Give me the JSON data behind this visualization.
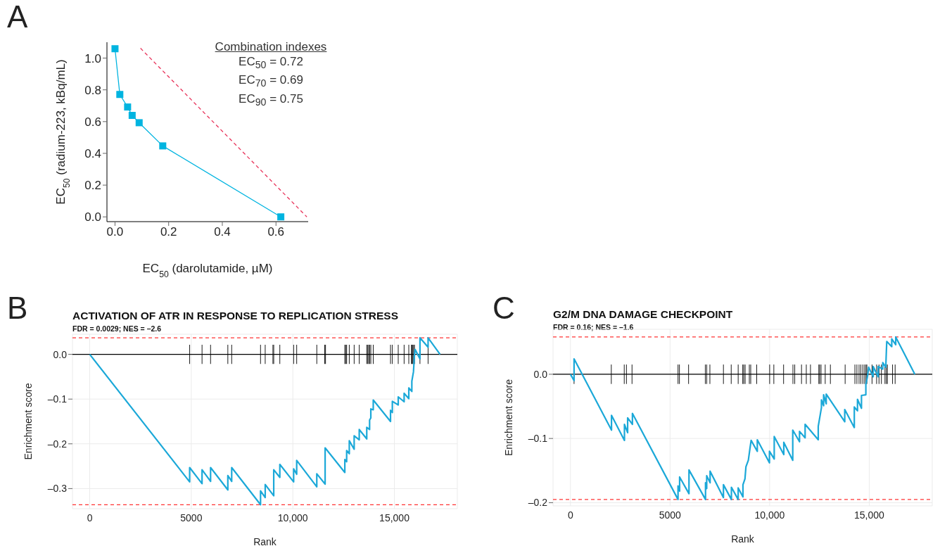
{
  "chart_data": [
    {
      "type": "line",
      "xlabel": "EC$_{50}$ (darolutamide, µM)",
      "ylabel": "EC$_{50}$ (radium-223, kBq/mL)",
      "annotations": [
        "A",
        "Combination indexes",
        "EC$_{50}$ = 0.72",
        "EC$_{70}$ = 0.69",
        "EC$_{90}$ = 0.75"
      ],
      "marker": "square",
      "line_style": "solid",
      "grid": false,
      "xlim": [
        -0.03,
        0.72
      ],
      "ylim": [
        -0.03,
        1.1
      ],
      "xticks": [
        {
          "value": 0,
          "label": "0.0"
        },
        0.2,
        0.4,
        0.6
      ],
      "yticks": [
        {
          "value": 0,
          "label": "0.0"
        },
        0.2,
        0.4,
        0.6,
        0.8,
        {
          "value": 1,
          "label": "1.0"
        }
      ],
      "series": [
        {
          "type": "line",
          "color": "#00b4e0",
          "x": [
            0,
            0.018,
            0.047,
            0.064,
            0.09,
            0.178,
            0.618
          ],
          "values": [
            1.059,
            0.771,
            0.692,
            0.639,
            0.593,
            0.447,
            0
          ]
        },
        {
          "type": "line",
          "color": "#e8335a",
          "line_style": "dashed",
          "marker": "none",
          "x": [
            0.095,
            0.715
          ],
          "values": [
            1.062,
            0
          ]
        }
      ]
    },
    {
      "type": "line",
      "title": "ACTIVATION OF ATR IN RESPONSE TO REPLICATION STRESS",
      "subtitle": "FDR = 0.0029; NES = –2.6",
      "xlabel": "Rank",
      "ylabel": "Enrichment score",
      "annotations": [
        "B"
      ],
      "marker": "none",
      "line_style": "solid",
      "grid": true,
      "xlim": [
        -850,
        18100
      ],
      "ylim": [
        -0.345,
        0.045
      ],
      "xticks": [
        0,
        5000,
        {
          "value": 10000,
          "label": "10,000"
        },
        {
          "value": 15000,
          "label": "15,000"
        }
      ],
      "yticks": [
        {
          "value": -0.3,
          "label": "–0.3"
        },
        {
          "value": -0.2,
          "label": "–0.2"
        },
        {
          "value": -0.1,
          "label": "–0.1"
        },
        {
          "value": 0,
          "label": "0.0"
        }
      ],
      "ref_lines": [
        {
          "axis": "y",
          "value": 0,
          "color": "#000000",
          "line_style": "solid"
        },
        {
          "axis": "y",
          "value": 0.037,
          "color": "#ff3333",
          "line_style": "dashed"
        },
        {
          "axis": "y",
          "value": -0.336,
          "color": "#ff3333",
          "line_style": "dashed"
        },
        {
          "axis": "x",
          "value": 4920,
          "color": "#000000"
        },
        {
          "axis": "x",
          "value": 5530,
          "color": "#000000"
        },
        {
          "axis": "x",
          "value": 5950,
          "color": "#000000"
        },
        {
          "axis": "x",
          "value": 6800,
          "color": "#000000"
        },
        {
          "axis": "x",
          "value": 6990,
          "color": "#000000"
        },
        {
          "axis": "x",
          "value": 8410,
          "color": "#000000"
        },
        {
          "axis": "x",
          "value": 8640,
          "color": "#000000"
        },
        {
          "axis": "x",
          "value": 9020,
          "color": "#000000"
        },
        {
          "axis": "x",
          "value": 9060,
          "color": "#000000"
        },
        {
          "axis": "x",
          "value": 9360,
          "color": "#000000"
        },
        {
          "axis": "x",
          "value": 10040,
          "color": "#000000"
        },
        {
          "axis": "x",
          "value": 10190,
          "color": "#000000"
        },
        {
          "axis": "x",
          "value": 11180,
          "color": "#000000"
        },
        {
          "axis": "x",
          "value": 11570,
          "color": "#000000"
        },
        {
          "axis": "x",
          "value": 11610,
          "color": "#000000"
        },
        {
          "axis": "x",
          "value": 12560,
          "color": "#000000"
        },
        {
          "axis": "x",
          "value": 12600,
          "color": "#000000"
        },
        {
          "axis": "x",
          "value": 12650,
          "color": "#000000"
        },
        {
          "axis": "x",
          "value": 12780,
          "color": "#000000"
        },
        {
          "axis": "x",
          "value": 13020,
          "color": "#000000"
        },
        {
          "axis": "x",
          "value": 13270,
          "color": "#000000"
        },
        {
          "axis": "x",
          "value": 13640,
          "color": "#000000"
        },
        {
          "axis": "x",
          "value": 13690,
          "color": "#000000"
        },
        {
          "axis": "x",
          "value": 13740,
          "color": "#000000"
        },
        {
          "axis": "x",
          "value": 13780,
          "color": "#000000"
        },
        {
          "axis": "x",
          "value": 13840,
          "color": "#000000"
        },
        {
          "axis": "x",
          "value": 13960,
          "color": "#000000"
        },
        {
          "axis": "x",
          "value": 14810,
          "color": "#000000"
        },
        {
          "axis": "x",
          "value": 14900,
          "color": "#000000"
        },
        {
          "axis": "x",
          "value": 15190,
          "color": "#000000"
        },
        {
          "axis": "x",
          "value": 15480,
          "color": "#000000"
        },
        {
          "axis": "x",
          "value": 15710,
          "color": "#000000"
        },
        {
          "axis": "x",
          "value": 15840,
          "color": "#000000"
        },
        {
          "axis": "x",
          "value": 15870,
          "color": "#000000"
        },
        {
          "axis": "x",
          "value": 15910,
          "color": "#000000"
        },
        {
          "axis": "x",
          "value": 15950,
          "color": "#000000"
        },
        {
          "axis": "x",
          "value": 15990,
          "color": "#000000"
        },
        {
          "axis": "x",
          "value": 16260,
          "color": "#000000"
        },
        {
          "axis": "x",
          "value": 16660,
          "color": "#000000"
        }
      ],
      "series": [
        {
          "type": "line",
          "color": "#1ba8d8",
          "x": [
            0,
            4920,
            4920,
            5530,
            5530,
            5950,
            5950,
            6800,
            6800,
            6990,
            6990,
            8410,
            8410,
            8640,
            8640,
            9060,
            9060,
            9360,
            9360,
            10040,
            10040,
            10190,
            10190,
            11180,
            11180,
            11590,
            11590,
            12560,
            12560,
            12650,
            12650,
            12780,
            12780,
            13020,
            13020,
            13270,
            13270,
            13640,
            13640,
            13780,
            13780,
            13840,
            13840,
            13960,
            13960,
            14810,
            14810,
            14900,
            14900,
            15190,
            15190,
            15480,
            15480,
            15710,
            15710,
            15860,
            15860,
            15940,
            15990,
            16020,
            16260,
            16260,
            16660,
            16660,
            17250
          ],
          "values": [
            0,
            -0.285,
            -0.253,
            -0.289,
            -0.258,
            -0.284,
            -0.253,
            -0.303,
            -0.271,
            -0.284,
            -0.253,
            -0.336,
            -0.305,
            -0.32,
            -0.291,
            -0.316,
            -0.258,
            -0.275,
            -0.246,
            -0.285,
            -0.256,
            -0.268,
            -0.237,
            -0.296,
            -0.267,
            -0.29,
            -0.209,
            -0.264,
            -0.235,
            -0.24,
            -0.215,
            -0.222,
            -0.193,
            -0.212,
            -0.182,
            -0.191,
            -0.168,
            -0.189,
            -0.163,
            -0.168,
            -0.147,
            -0.142,
            -0.122,
            -0.124,
            -0.102,
            -0.15,
            -0.125,
            -0.13,
            -0.105,
            -0.113,
            -0.095,
            -0.106,
            -0.087,
            -0.099,
            -0.075,
            -0.083,
            -0.06,
            -0.039,
            -0.001,
            0.011,
            -0.01,
            0.037,
            0.016,
            0.037,
            0
          ]
        }
      ]
    },
    {
      "type": "line",
      "title": "G2/M DNA DAMAGE CHECKPOINT",
      "subtitle": "FDR = 0.16; NES = –1.6",
      "xlabel": "Rank",
      "ylabel": "Enrichment score",
      "annotations": [
        "C"
      ],
      "marker": "none",
      "line_style": "solid",
      "grid": true,
      "xlim": [
        -876,
        18164
      ],
      "ylim": [
        -0.205,
        0.07
      ],
      "xticks": [
        0,
        5000,
        {
          "value": 10000,
          "label": "10,000"
        },
        {
          "value": 15000,
          "label": "15,000"
        }
      ],
      "yticks": [
        {
          "value": -0.2,
          "label": "–0.2"
        },
        {
          "value": -0.1,
          "label": "–0.1"
        },
        {
          "value": 0,
          "label": "0.0"
        }
      ],
      "ref_lines": [
        {
          "axis": "y",
          "value": 0,
          "color": "#000000",
          "line_style": "solid"
        },
        {
          "axis": "y",
          "value": 0.058,
          "color": "#ff3333",
          "line_style": "dashed"
        },
        {
          "axis": "y",
          "value": -0.195,
          "color": "#ff3333",
          "line_style": "dashed"
        },
        {
          "axis": "x",
          "value": 180,
          "color": "#000000"
        },
        {
          "axis": "x",
          "value": 2050,
          "color": "#000000"
        },
        {
          "axis": "x",
          "value": 2700,
          "color": "#000000"
        },
        {
          "axis": "x",
          "value": 2810,
          "color": "#000000"
        },
        {
          "axis": "x",
          "value": 3090,
          "color": "#000000"
        },
        {
          "axis": "x",
          "value": 5400,
          "color": "#000000"
        },
        {
          "axis": "x",
          "value": 5470,
          "color": "#000000"
        },
        {
          "axis": "x",
          "value": 5930,
          "color": "#000000"
        },
        {
          "axis": "x",
          "value": 6770,
          "color": "#000000"
        },
        {
          "axis": "x",
          "value": 6840,
          "color": "#000000"
        },
        {
          "axis": "x",
          "value": 7000,
          "color": "#000000"
        },
        {
          "axis": "x",
          "value": 7680,
          "color": "#000000"
        },
        {
          "axis": "x",
          "value": 8070,
          "color": "#000000"
        },
        {
          "axis": "x",
          "value": 8420,
          "color": "#000000"
        },
        {
          "axis": "x",
          "value": 8650,
          "color": "#000000"
        },
        {
          "axis": "x",
          "value": 8700,
          "color": "#000000"
        },
        {
          "axis": "x",
          "value": 8770,
          "color": "#000000"
        },
        {
          "axis": "x",
          "value": 8980,
          "color": "#000000"
        },
        {
          "axis": "x",
          "value": 9050,
          "color": "#000000"
        },
        {
          "axis": "x",
          "value": 9350,
          "color": "#000000"
        },
        {
          "axis": "x",
          "value": 10000,
          "color": "#000000"
        },
        {
          "axis": "x",
          "value": 10210,
          "color": "#000000"
        },
        {
          "axis": "x",
          "value": 10700,
          "color": "#000000"
        },
        {
          "axis": "x",
          "value": 11170,
          "color": "#000000"
        },
        {
          "axis": "x",
          "value": 11260,
          "color": "#000000"
        },
        {
          "axis": "x",
          "value": 11600,
          "color": "#000000"
        },
        {
          "axis": "x",
          "value": 11840,
          "color": "#000000"
        },
        {
          "axis": "x",
          "value": 12050,
          "color": "#000000"
        },
        {
          "axis": "x",
          "value": 12470,
          "color": "#000000"
        },
        {
          "axis": "x",
          "value": 12510,
          "color": "#000000"
        },
        {
          "axis": "x",
          "value": 12580,
          "color": "#000000"
        },
        {
          "axis": "x",
          "value": 12790,
          "color": "#000000"
        },
        {
          "axis": "x",
          "value": 13050,
          "color": "#000000"
        },
        {
          "axis": "x",
          "value": 13790,
          "color": "#000000"
        },
        {
          "axis": "x",
          "value": 14280,
          "color": "#000000"
        },
        {
          "axis": "x",
          "value": 14380,
          "color": "#000000"
        },
        {
          "axis": "x",
          "value": 14490,
          "color": "#000000"
        },
        {
          "axis": "x",
          "value": 14580,
          "color": "#000000"
        },
        {
          "axis": "x",
          "value": 14680,
          "color": "#000000"
        },
        {
          "axis": "x",
          "value": 14770,
          "color": "#000000"
        },
        {
          "axis": "x",
          "value": 14840,
          "color": "#000000"
        },
        {
          "axis": "x",
          "value": 14880,
          "color": "#000000"
        },
        {
          "axis": "x",
          "value": 15140,
          "color": "#000000"
        },
        {
          "axis": "x",
          "value": 15370,
          "color": "#000000"
        },
        {
          "axis": "x",
          "value": 15490,
          "color": "#000000"
        },
        {
          "axis": "x",
          "value": 15610,
          "color": "#000000"
        },
        {
          "axis": "x",
          "value": 15790,
          "color": "#000000"
        },
        {
          "axis": "x",
          "value": 15860,
          "color": "#000000"
        },
        {
          "axis": "x",
          "value": 15910,
          "color": "#000000"
        },
        {
          "axis": "x",
          "value": 16170,
          "color": "#000000"
        },
        {
          "axis": "x",
          "value": 16300,
          "color": "#000000"
        }
      ],
      "series": [
        {
          "type": "line",
          "color": "#1ba8d8",
          "x": [
            0,
            180,
            180,
            2060,
            2060,
            2710,
            2710,
            2870,
            2870,
            3110,
            3110,
            5400,
            5400,
            5480,
            5480,
            5950,
            5950,
            6780,
            6780,
            6840,
            6840,
            7010,
            7010,
            7680,
            7680,
            8080,
            8080,
            8420,
            8420,
            8660,
            8660,
            8760,
            8810,
            8930,
            9010,
            9070,
            9380,
            9380,
            9990,
            9990,
            10230,
            10230,
            10710,
            10710,
            11160,
            11160,
            11500,
            11500,
            11780,
            11780,
            12440,
            12440,
            12600,
            12600,
            12710,
            12710,
            12840,
            12840,
            13770,
            13770,
            14250,
            14250,
            14410,
            14410,
            14610,
            14610,
            14830,
            14830,
            14920,
            14970,
            15200,
            15200,
            15450,
            15450,
            15680,
            15680,
            15830,
            15860,
            15880,
            16130,
            16130,
            16330,
            16330,
            17290
          ],
          "values": [
            0,
            -0.01,
            0.024,
            -0.087,
            -0.064,
            -0.103,
            -0.078,
            -0.091,
            -0.068,
            -0.078,
            -0.061,
            -0.195,
            -0.174,
            -0.182,
            -0.16,
            -0.186,
            -0.149,
            -0.195,
            -0.169,
            -0.178,
            -0.158,
            -0.169,
            -0.151,
            -0.192,
            -0.172,
            -0.195,
            -0.176,
            -0.195,
            -0.177,
            -0.191,
            -0.172,
            -0.163,
            -0.144,
            -0.134,
            -0.116,
            -0.103,
            -0.12,
            -0.102,
            -0.138,
            -0.12,
            -0.132,
            -0.097,
            -0.125,
            -0.106,
            -0.134,
            -0.087,
            -0.105,
            -0.089,
            -0.099,
            -0.078,
            -0.102,
            -0.081,
            -0.052,
            -0.04,
            -0.049,
            -0.032,
            -0.046,
            -0.031,
            -0.074,
            -0.055,
            -0.083,
            -0.051,
            -0.057,
            -0.039,
            -0.053,
            -0.033,
            -0.032,
            -0.016,
            -0.002,
            0.011,
            -0.004,
            0.012,
            -0.004,
            0.012,
            0.008,
            0.018,
            0.011,
            0.036,
            0.051,
            0.043,
            0.055,
            0.046,
            0.058,
            0
          ]
        }
      ]
    }
  ]
}
